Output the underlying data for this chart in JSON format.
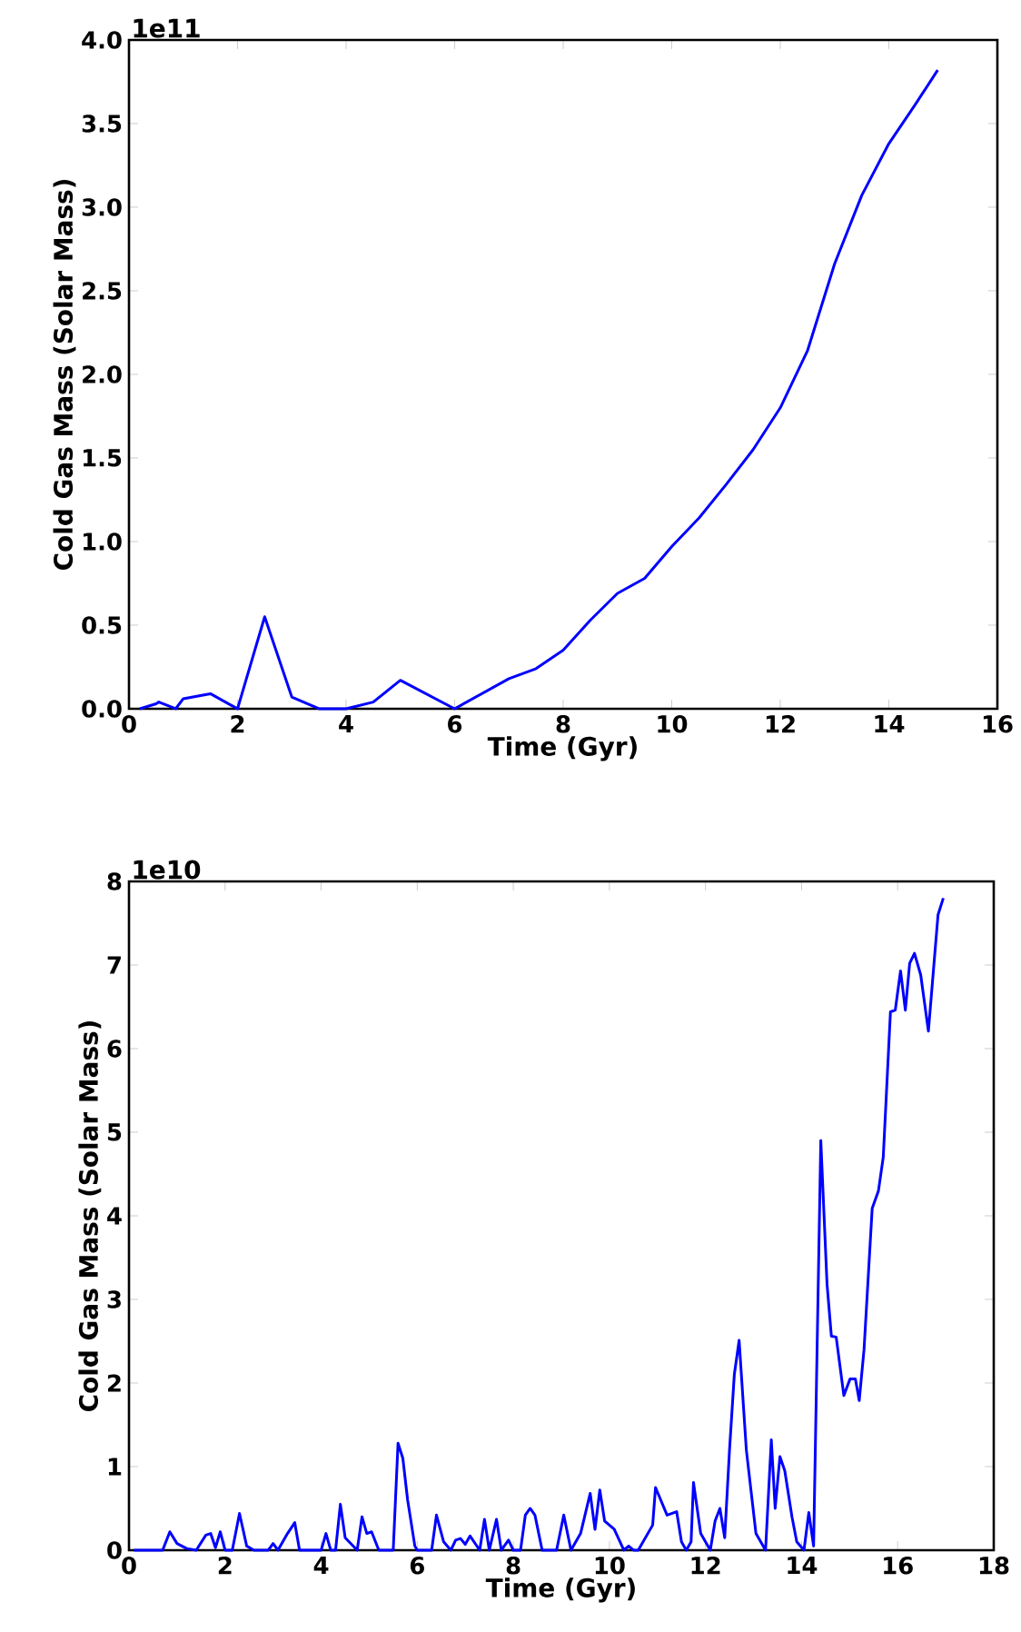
{
  "chart_data": [
    {
      "type": "line",
      "xlabel": "Time (Gyr)",
      "ylabel": "Cold Gas Mass (Solar Mass)",
      "annotations": [
        "1e11"
      ],
      "xlim": [
        0,
        16
      ],
      "xticks": [
        0,
        2,
        4,
        6,
        8,
        10,
        12,
        14,
        16
      ],
      "ylim": [
        0,
        4.0
      ],
      "yticks": [
        {
          "value": 0,
          "label": "0.0"
        },
        {
          "value": 0.5,
          "label": "0.5"
        },
        {
          "value": 1,
          "label": "1.0"
        },
        {
          "value": 1.5,
          "label": "1.5"
        },
        {
          "value": 2,
          "label": "2.0"
        },
        {
          "value": 2.5,
          "label": "2.5"
        },
        {
          "value": 3,
          "label": "3.0"
        },
        {
          "value": 3.5,
          "label": "3.5"
        },
        {
          "value": 4,
          "label": "4.0"
        }
      ],
      "series": [
        {
          "color": "#0000ff",
          "x": [
            0.2,
            0.5,
            0.55,
            0.86,
            1.0,
            1.5,
            2.0,
            2.5,
            3.0,
            3.5,
            4.0,
            4.5,
            5.0,
            6.0,
            7.0,
            7.5,
            8.0,
            8.5,
            9.0,
            9.5,
            10.0,
            10.5,
            11.0,
            11.5,
            12.0,
            12.5,
            13.0,
            13.5,
            14.0,
            14.5,
            14.9
          ],
          "values": [
            0,
            0.03,
            0.04,
            0,
            0.06,
            0.09,
            0,
            0.55,
            0.07,
            0,
            0,
            0.04,
            0.17,
            0,
            0.18,
            0.24,
            0.35,
            0.53,
            0.69,
            0.78,
            0.97,
            1.14,
            1.34,
            1.55,
            1.8,
            2.14,
            2.66,
            3.07,
            3.38,
            3.62,
            3.82
          ]
        }
      ]
    },
    {
      "type": "line",
      "xlabel": "Time (Gyr)",
      "ylabel": "Cold Gas Mass (Solar Mass)",
      "annotations": [
        "1e10"
      ],
      "xlim": [
        0,
        18
      ],
      "xticks": [
        0,
        2,
        4,
        6,
        8,
        10,
        12,
        14,
        16,
        18
      ],
      "ylim": [
        0,
        8
      ],
      "yticks": [
        0,
        1,
        2,
        3,
        4,
        5,
        6,
        7,
        8
      ],
      "series": [
        {
          "color": "#0000ff",
          "x": [
            0.1,
            0.7,
            0.85,
            1.0,
            1.2,
            1.4,
            1.6,
            1.7,
            1.8,
            1.9,
            2.0,
            2.15,
            2.3,
            2.45,
            2.6,
            2.9,
            3.0,
            3.1,
            3.3,
            3.45,
            3.55,
            4.0,
            4.1,
            4.2,
            4.3,
            4.4,
            4.5,
            4.75,
            4.85,
            4.95,
            5.05,
            5.2,
            5.5,
            5.6,
            5.7,
            5.8,
            5.95,
            6.0,
            6.3,
            6.4,
            6.55,
            6.7,
            6.8,
            6.9,
            7.0,
            7.1,
            7.3,
            7.4,
            7.5,
            7.65,
            7.75,
            7.9,
            8.0,
            8.15,
            8.25,
            8.35,
            8.45,
            8.6,
            8.9,
            9.05,
            9.2,
            9.4,
            9.6,
            9.7,
            9.8,
            9.9,
            10.1,
            10.3,
            10.4,
            10.5,
            10.6,
            10.9,
            10.96,
            11.2,
            11.4,
            11.5,
            11.6,
            11.7,
            11.75,
            11.9,
            12.1,
            12.2,
            12.3,
            12.4,
            12.5,
            12.6,
            12.7,
            12.85,
            13.05,
            13.25,
            13.37,
            13.45,
            13.55,
            13.65,
            13.8,
            13.9,
            14.05,
            14.15,
            14.25,
            14.4,
            14.53,
            14.62,
            14.72,
            14.88,
            15.01,
            15.12,
            15.2,
            15.3,
            15.47,
            15.6,
            15.7,
            15.85,
            15.95,
            16.06,
            16.16,
            16.25,
            16.35,
            16.48,
            16.64,
            16.84,
            16.95
          ],
          "values": [
            0,
            0,
            0.22,
            0.08,
            0.02,
            0,
            0.18,
            0.2,
            0.03,
            0.22,
            0,
            0,
            0.44,
            0.05,
            0,
            0,
            0.08,
            0,
            0.2,
            0.33,
            0,
            0,
            0.2,
            0,
            0,
            0.55,
            0.15,
            0,
            0.4,
            0.2,
            0.22,
            0,
            0,
            1.28,
            1.1,
            0.6,
            0.05,
            0,
            0,
            0.42,
            0.1,
            0,
            0.12,
            0.14,
            0.07,
            0.17,
            0,
            0.37,
            0,
            0.37,
            0,
            0.12,
            0,
            0,
            0.42,
            0.5,
            0.42,
            0,
            0,
            0.42,
            0,
            0.2,
            0.68,
            0.25,
            0.72,
            0.35,
            0.25,
            0,
            0.05,
            0,
            0,
            0.3,
            0.75,
            0.42,
            0.46,
            0.1,
            0,
            0.1,
            0.81,
            0.2,
            0,
            0.35,
            0.5,
            0.15,
            1.2,
            2.1,
            2.51,
            1.2,
            0.2,
            0,
            1.32,
            0.5,
            1.12,
            0.95,
            0.4,
            0.1,
            0,
            0.45,
            0.05,
            4.9,
            3.18,
            2.56,
            2.55,
            1.85,
            2.05,
            2.05,
            1.79,
            2.4,
            4.09,
            4.3,
            4.7,
            6.44,
            6.46,
            6.93,
            6.46,
            7.02,
            7.14,
            6.88,
            6.21,
            7.6,
            7.8
          ]
        }
      ]
    }
  ]
}
